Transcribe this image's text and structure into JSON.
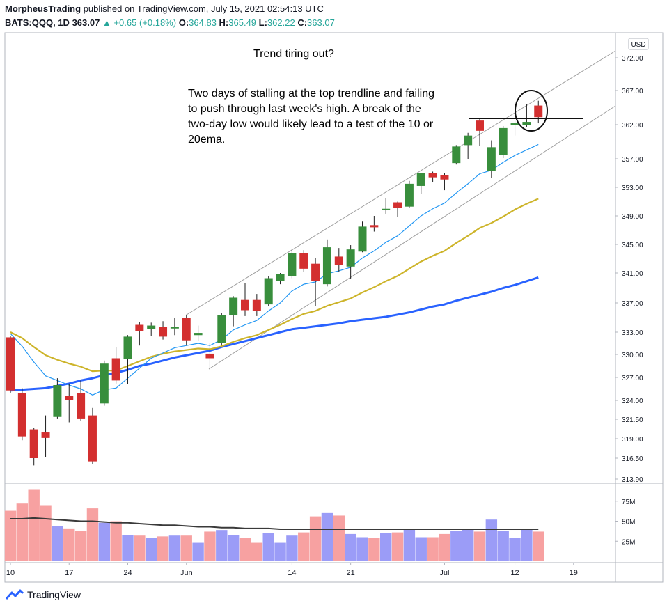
{
  "header": {
    "publisher": "MorpheusTrading",
    "published_text": "published on TradingView.com, July 15, 2021 02:54:13 UTC",
    "symbol": "BATS:QQQ, 1D",
    "last": "363.07",
    "change": "+0.65 (+0.18%)",
    "open_label": "O:",
    "open": "364.83",
    "high_label": "H:",
    "high": "365.49",
    "low_label": "L:",
    "low": "362.22",
    "close_label": "C:",
    "close": "363.07"
  },
  "annotations": {
    "title": "Trend tiring out?",
    "note": "Two days of stalling at the top trendline and failing to push through last week's high.  A break of the two-day low would likely lead to a test of the 10 or 20ema."
  },
  "currency": "USD",
  "brand": "TradingView",
  "colors": {
    "up": "#388e3c",
    "down": "#d32f2f",
    "ema10": "#2196f3",
    "ema20": "#cdb42a",
    "sma50": "#2962ff",
    "vol_up": "#9b9cf7",
    "vol_down": "#f7a1a1"
  },
  "chart_data": {
    "type": "candlestick",
    "y_ticks": [
      313.9,
      316.5,
      319.0,
      321.5,
      324.0,
      327.0,
      330.0,
      333.0,
      337.0,
      341.0,
      345.0,
      349.0,
      353.0,
      357.0,
      362.0,
      367.0,
      372.0
    ],
    "y_tick_labels": [
      "313.90",
      "316.50",
      "319.00",
      "321.50",
      "324.00",
      "327.00",
      "330.00",
      "333.00",
      "337.00",
      "341.00",
      "345.00",
      "349.00",
      "353.00",
      "357.00",
      "362.00",
      "367.00",
      "372.00"
    ],
    "x_labels": [
      {
        "index": 0,
        "label": "10"
      },
      {
        "index": 5,
        "label": "17"
      },
      {
        "index": 10,
        "label": "24"
      },
      {
        "index": 15,
        "label": "Jun"
      },
      {
        "index": 24,
        "label": "14"
      },
      {
        "index": 29,
        "label": "21"
      },
      {
        "index": 37,
        "label": "Jul"
      },
      {
        "index": 43,
        "label": "12"
      },
      {
        "index": 48,
        "label": "19"
      }
    ],
    "candles": [
      {
        "o": 332.3,
        "h": 332.5,
        "l": 325.0,
        "c": 325.3
      },
      {
        "o": 325.0,
        "h": 325.6,
        "l": 318.8,
        "c": 319.3
      },
      {
        "o": 320.2,
        "h": 320.4,
        "l": 315.6,
        "c": 316.5
      },
      {
        "o": 319.8,
        "h": 322.0,
        "l": 316.6,
        "c": 319.1
      },
      {
        "o": 321.8,
        "h": 326.9,
        "l": 321.6,
        "c": 326.0
      },
      {
        "o": 324.6,
        "h": 326.2,
        "l": 321.1,
        "c": 324.0
      },
      {
        "o": 325.0,
        "h": 326.6,
        "l": 321.3,
        "c": 321.6
      },
      {
        "o": 322.0,
        "h": 323.0,
        "l": 315.8,
        "c": 316.1
      },
      {
        "o": 323.6,
        "h": 329.2,
        "l": 323.3,
        "c": 328.8
      },
      {
        "o": 329.5,
        "h": 331.0,
        "l": 326.2,
        "c": 326.6
      },
      {
        "o": 329.4,
        "h": 332.6,
        "l": 326.1,
        "c": 332.4
      },
      {
        "o": 334.0,
        "h": 334.4,
        "l": 331.2,
        "c": 333.1
      },
      {
        "o": 333.4,
        "h": 334.3,
        "l": 332.5,
        "c": 333.9
      },
      {
        "o": 333.7,
        "h": 334.5,
        "l": 332.0,
        "c": 332.4
      },
      {
        "o": 333.5,
        "h": 335.0,
        "l": 332.6,
        "c": 333.7
      },
      {
        "o": 335.0,
        "h": 335.4,
        "l": 331.2,
        "c": 331.9
      },
      {
        "o": 332.6,
        "h": 333.9,
        "l": 331.8,
        "c": 332.9
      },
      {
        "o": 330.1,
        "h": 331.6,
        "l": 328.0,
        "c": 329.5
      },
      {
        "o": 331.5,
        "h": 335.6,
        "l": 331.2,
        "c": 335.3
      },
      {
        "o": 335.3,
        "h": 337.9,
        "l": 333.8,
        "c": 337.7
      },
      {
        "o": 337.4,
        "h": 339.6,
        "l": 335.2,
        "c": 336.0
      },
      {
        "o": 337.4,
        "h": 338.2,
        "l": 335.2,
        "c": 335.9
      },
      {
        "o": 336.8,
        "h": 340.6,
        "l": 336.6,
        "c": 340.3
      },
      {
        "o": 339.9,
        "h": 341.0,
        "l": 339.5,
        "c": 340.9
      },
      {
        "o": 340.6,
        "h": 344.3,
        "l": 340.3,
        "c": 343.8
      },
      {
        "o": 343.8,
        "h": 344.2,
        "l": 341.1,
        "c": 341.6
      },
      {
        "o": 342.3,
        "h": 343.1,
        "l": 336.6,
        "c": 339.9
      },
      {
        "o": 339.5,
        "h": 345.7,
        "l": 339.2,
        "c": 344.6
      },
      {
        "o": 343.3,
        "h": 344.5,
        "l": 341.2,
        "c": 342.1
      },
      {
        "o": 341.9,
        "h": 344.9,
        "l": 340.2,
        "c": 344.3
      },
      {
        "o": 344.0,
        "h": 348.2,
        "l": 343.9,
        "c": 347.5
      },
      {
        "o": 347.7,
        "h": 349.0,
        "l": 346.8,
        "c": 347.4
      },
      {
        "o": 350.0,
        "h": 351.5,
        "l": 349.3,
        "c": 350.0
      },
      {
        "o": 350.9,
        "h": 351.0,
        "l": 348.9,
        "c": 350.1
      },
      {
        "o": 350.3,
        "h": 353.9,
        "l": 350.1,
        "c": 353.5
      },
      {
        "o": 353.2,
        "h": 355.0,
        "l": 352.1,
        "c": 355.0
      },
      {
        "o": 355.0,
        "h": 355.2,
        "l": 353.7,
        "c": 354.4
      },
      {
        "o": 354.7,
        "h": 355.0,
        "l": 352.6,
        "c": 354.1
      },
      {
        "o": 356.4,
        "h": 359.0,
        "l": 356.2,
        "c": 358.8
      },
      {
        "o": 359.0,
        "h": 360.8,
        "l": 357.0,
        "c": 360.4
      },
      {
        "o": 362.6,
        "h": 362.9,
        "l": 358.9,
        "c": 361.1
      },
      {
        "o": 355.3,
        "h": 359.7,
        "l": 354.3,
        "c": 358.7
      },
      {
        "o": 357.6,
        "h": 361.8,
        "l": 357.1,
        "c": 361.5
      },
      {
        "o": 362.2,
        "h": 362.6,
        "l": 360.4,
        "c": 362.2
      },
      {
        "o": 361.9,
        "h": 365.0,
        "l": 361.6,
        "c": 362.4
      },
      {
        "o": 364.8,
        "h": 365.5,
        "l": 362.2,
        "c": 363.1
      }
    ],
    "ema10": [
      332.8,
      331.1,
      329.0,
      327.2,
      326.6,
      326.0,
      325.5,
      324.7,
      325.4,
      325.6,
      326.9,
      328.2,
      329.5,
      330.2,
      330.9,
      331.2,
      331.5,
      331.2,
      332.0,
      333.3,
      334.0,
      334.6,
      335.9,
      337.0,
      338.6,
      339.5,
      339.8,
      340.9,
      341.3,
      341.8,
      343.1,
      344.1,
      345.3,
      346.2,
      347.6,
      349.0,
      350.0,
      350.8,
      352.2,
      353.5,
      354.9,
      355.4,
      356.5,
      357.5,
      358.3,
      359.1
    ],
    "ema20": [
      333.0,
      332.2,
      331.0,
      329.9,
      329.3,
      328.8,
      328.4,
      327.8,
      327.9,
      327.9,
      328.5,
      329.1,
      329.7,
      330.1,
      330.4,
      330.6,
      330.8,
      330.7,
      331.1,
      331.7,
      332.2,
      332.6,
      333.3,
      334.0,
      334.8,
      335.5,
      335.9,
      336.6,
      337.1,
      337.6,
      338.4,
      339.1,
      339.9,
      340.6,
      341.6,
      342.6,
      343.4,
      344.1,
      345.2,
      346.2,
      347.3,
      348.0,
      348.9,
      349.9,
      350.7,
      351.4
    ],
    "sma50": [
      325.3,
      325.4,
      325.5,
      325.6,
      325.9,
      326.2,
      326.6,
      326.9,
      327.3,
      327.6,
      328.0,
      328.5,
      328.8,
      329.2,
      329.6,
      329.9,
      330.2,
      330.5,
      331.0,
      331.4,
      331.8,
      332.2,
      332.6,
      333.0,
      333.4,
      333.6,
      333.8,
      334.0,
      334.2,
      334.5,
      334.7,
      334.9,
      335.1,
      335.4,
      335.7,
      336.1,
      336.5,
      336.8,
      337.3,
      337.7,
      338.1,
      338.5,
      339.0,
      339.4,
      339.9,
      340.4
    ],
    "volume_ticks": [
      25,
      50,
      75
    ],
    "volume_tick_labels": [
      "25M",
      "50M",
      "75M"
    ],
    "volume": [
      63,
      72,
      90,
      70,
      44,
      41,
      38,
      66,
      48,
      50,
      33,
      32,
      29,
      31,
      32,
      32,
      23,
      37,
      39,
      33,
      29,
      23,
      35,
      23,
      32,
      36,
      56,
      61,
      57,
      34,
      30,
      29,
      35,
      36,
      40,
      30,
      30,
      34,
      38,
      40,
      37,
      52,
      38,
      29,
      40,
      37
    ],
    "volume_sma": [
      53,
      53,
      54,
      53,
      52,
      51,
      50,
      50,
      49,
      48,
      48,
      47,
      46,
      45,
      45,
      44,
      43,
      43,
      42,
      42,
      41,
      41,
      41,
      40,
      40,
      40,
      40,
      40,
      40,
      40,
      40,
      40,
      40,
      40,
      40,
      40,
      40,
      40,
      40,
      40,
      40,
      40,
      40,
      40,
      40,
      40
    ]
  }
}
